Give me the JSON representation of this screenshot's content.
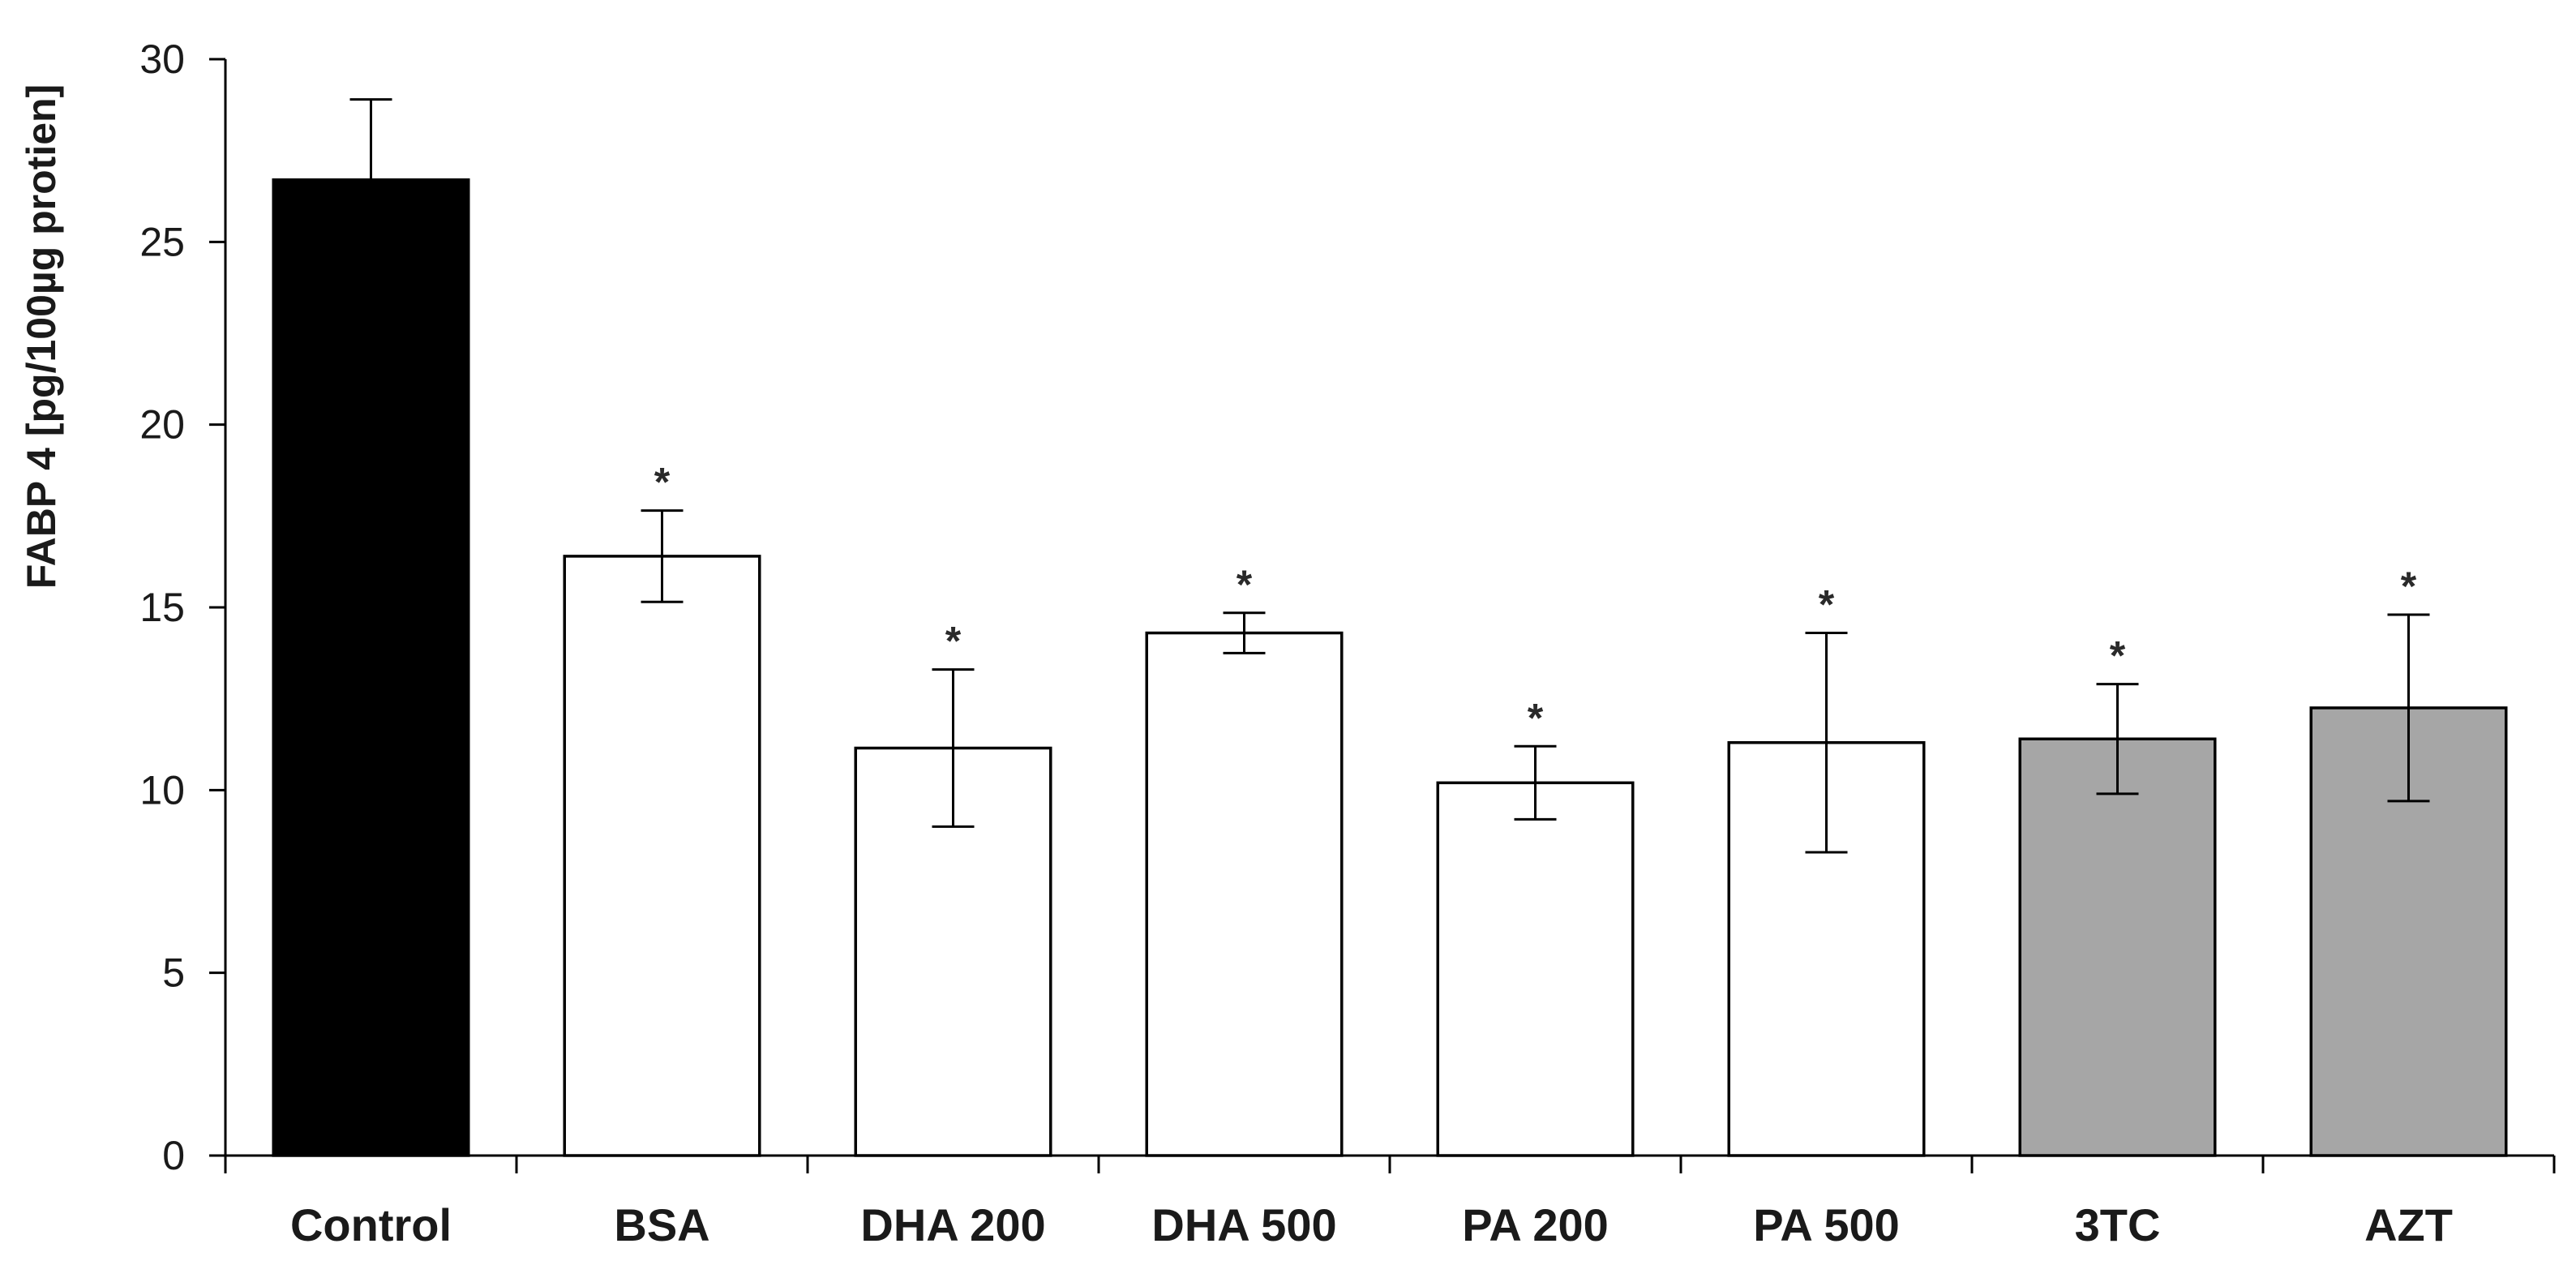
{
  "chart_data": {
    "type": "bar",
    "title": "",
    "xlabel": "",
    "ylabel": "FABP 4 [pg/100µg protien]",
    "ylim": [
      0,
      30
    ],
    "yticks": [
      0,
      5,
      10,
      15,
      20,
      25,
      30
    ],
    "grid": false,
    "legend": "none",
    "categories": [
      "Control",
      "BSA",
      "DHA 200",
      "DHA 500",
      "PA 200",
      "PA 500",
      "3TC",
      "AZT"
    ],
    "values": [
      26.7,
      16.4,
      11.15,
      14.3,
      10.2,
      11.3,
      11.4,
      12.25
    ],
    "error": [
      2.2,
      1.25,
      2.15,
      0.55,
      1.0,
      3.0,
      1.5,
      2.55
    ],
    "significance": [
      "",
      "*",
      "*",
      "*",
      "*",
      "*",
      "*",
      "*"
    ],
    "bar_colors": [
      "#000000",
      "#ffffff",
      "#ffffff",
      "#ffffff",
      "#ffffff",
      "#ffffff",
      "#a6a6a6",
      "#a6a6a6"
    ]
  }
}
